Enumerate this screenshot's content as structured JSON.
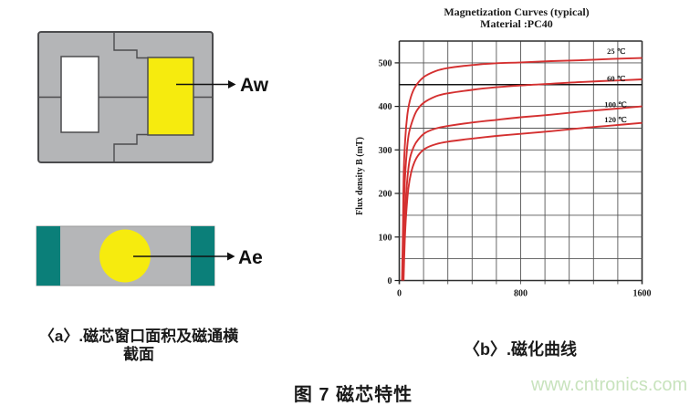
{
  "figure": {
    "caption": "图 7 磁芯特性",
    "watermark": "www.cntronics.com"
  },
  "diagram_a": {
    "caption_line1": "〈a〉.磁芯窗口面积及磁通横",
    "caption_line2": "截面",
    "aw_label": "Aw",
    "ae_label": "Ae",
    "colors": {
      "core_gray": "#b4b5b7",
      "outline": "#4c4c4e",
      "window_white": "#ffffff",
      "winding_yellow": "#f6eb0e",
      "teal": "#0b7f79"
    }
  },
  "chart": {
    "caption": "〈b〉.磁化曲线",
    "title_line1": "Magnetization Curves (typical)",
    "title_line2": "Material :PC40",
    "y_axis_title": "Flux density B (mT)",
    "x_ticks": [
      0,
      800,
      1600
    ],
    "y_ticks": [
      0,
      100,
      200,
      300,
      400,
      500
    ],
    "curve_color": "#d43030",
    "grid_color": "#565656",
    "border_color": "#2e2e2e"
  },
  "chart_data": {
    "type": "line",
    "title": "Magnetization Curves (typical)",
    "subtitle": "Material :PC40",
    "xlabel": "",
    "ylabel": "Flux density B (mT)",
    "xlim": [
      0,
      1600
    ],
    "ylim": [
      0,
      550
    ],
    "x_gridline_step": 160,
    "y_gridline_step": 50,
    "highlight_y_gridline": 450,
    "grid": true,
    "legend_position": "inline-right",
    "series": [
      {
        "name": "25 ℃",
        "label_at": [
          1430,
          527
        ],
        "points": [
          [
            18,
            0
          ],
          [
            24,
            120
          ],
          [
            30,
            255
          ],
          [
            40,
            330
          ],
          [
            55,
            385
          ],
          [
            75,
            420
          ],
          [
            105,
            445
          ],
          [
            160,
            467
          ],
          [
            240,
            481
          ],
          [
            320,
            488
          ],
          [
            480,
            495
          ],
          [
            640,
            499
          ],
          [
            800,
            501
          ],
          [
            1000,
            504
          ],
          [
            1200,
            506
          ],
          [
            1400,
            509
          ],
          [
            1600,
            511
          ]
        ]
      },
      {
        "name": "60 ℃",
        "label_at": [
          1430,
          464
        ],
        "points": [
          [
            20,
            0
          ],
          [
            27,
            110
          ],
          [
            35,
            215
          ],
          [
            48,
            290
          ],
          [
            62,
            335
          ],
          [
            85,
            365
          ],
          [
            115,
            390
          ],
          [
            160,
            408
          ],
          [
            240,
            423
          ],
          [
            320,
            430
          ],
          [
            480,
            438
          ],
          [
            640,
            444
          ],
          [
            800,
            448
          ],
          [
            1000,
            452
          ],
          [
            1200,
            456
          ],
          [
            1400,
            459
          ],
          [
            1600,
            462
          ]
        ]
      },
      {
        "name": "100 ℃",
        "label_at": [
          1425,
          404
        ],
        "points": [
          [
            24,
            0
          ],
          [
            32,
            100
          ],
          [
            42,
            180
          ],
          [
            55,
            240
          ],
          [
            70,
            280
          ],
          [
            95,
            307
          ],
          [
            125,
            324
          ],
          [
            170,
            339
          ],
          [
            240,
            349
          ],
          [
            320,
            355
          ],
          [
            480,
            363
          ],
          [
            640,
            369
          ],
          [
            800,
            375
          ],
          [
            1000,
            381
          ],
          [
            1200,
            388
          ],
          [
            1400,
            394
          ],
          [
            1600,
            400
          ]
        ]
      },
      {
        "name": "120 ℃",
        "label_at": [
          1425,
          370
        ],
        "points": [
          [
            28,
            0
          ],
          [
            36,
            90
          ],
          [
            47,
            160
          ],
          [
            60,
            212
          ],
          [
            78,
            248
          ],
          [
            100,
            272
          ],
          [
            130,
            290
          ],
          [
            175,
            304
          ],
          [
            240,
            313
          ],
          [
            320,
            319
          ],
          [
            480,
            326
          ],
          [
            640,
            332
          ],
          [
            800,
            337
          ],
          [
            1000,
            343
          ],
          [
            1200,
            350
          ],
          [
            1400,
            356
          ],
          [
            1600,
            362
          ]
        ]
      }
    ]
  }
}
